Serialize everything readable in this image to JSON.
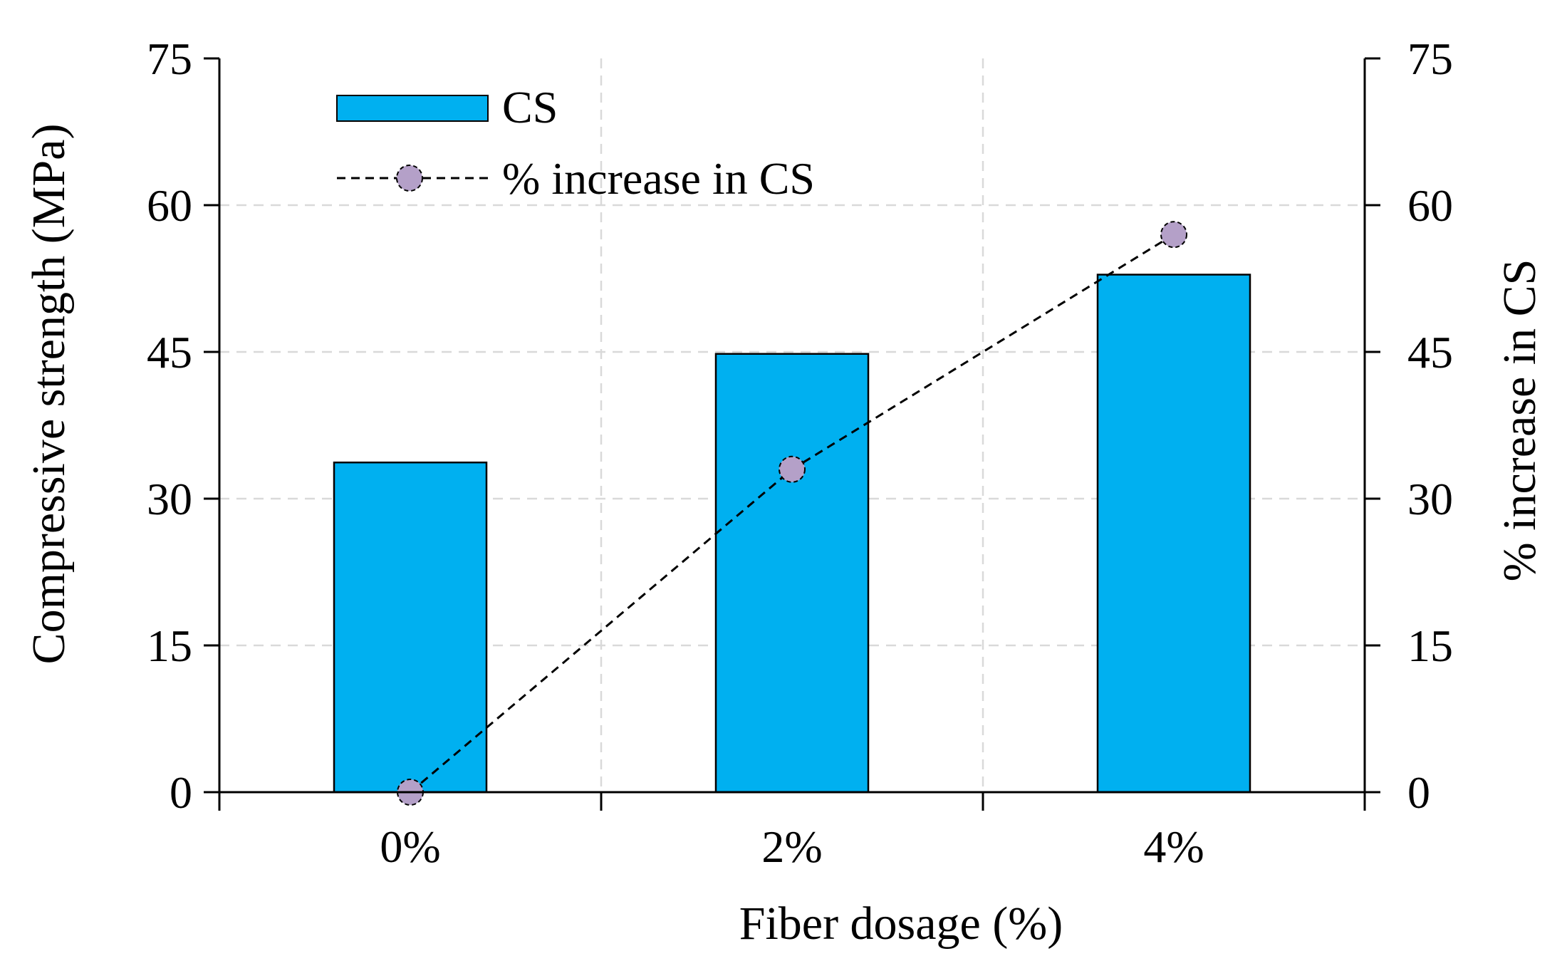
{
  "chart_data": {
    "type": "bar",
    "categories": [
      "0%",
      "2%",
      "4%"
    ],
    "series": [
      {
        "name": "CS",
        "kind": "bar",
        "axis": "left",
        "values": [
          33.7,
          44.8,
          52.9
        ]
      },
      {
        "name": "% increase in CS",
        "kind": "line",
        "axis": "right",
        "line_style": "dashed",
        "values": [
          0,
          33,
          57
        ]
      }
    ],
    "xlabel": "Fiber dosage (%)",
    "ylabel": "Compressive strength (MPa)",
    "y2label": "% increase in CS",
    "ylim": [
      0,
      75
    ],
    "y2lim": [
      0,
      75
    ],
    "yticks": [
      0,
      15,
      30,
      45,
      60,
      75
    ],
    "y2ticks": [
      0,
      15,
      30,
      45,
      60,
      75
    ],
    "grid": true,
    "legend_position": "top-left",
    "colors": {
      "bar": "#00B0F0",
      "marker": "#B4A0C8",
      "line": "#000000",
      "grid": "#D9D9D9"
    }
  }
}
